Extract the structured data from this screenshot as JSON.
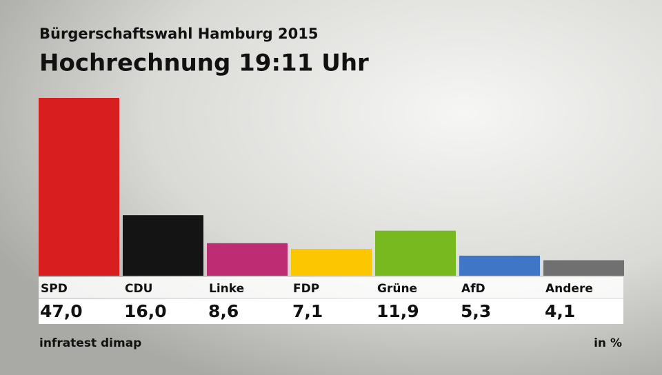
{
  "chart_data": {
    "type": "bar",
    "subtitle": "Bürgerschaftswahl Hamburg 2015",
    "title": "Hochrechnung 19:11 Uhr",
    "categories": [
      "SPD",
      "CDU",
      "Linke",
      "FDP",
      "Grüne",
      "AfD",
      "Andere"
    ],
    "values": [
      47.0,
      16.0,
      8.6,
      7.1,
      11.9,
      5.3,
      4.1
    ],
    "value_labels": [
      "47,0",
      "16,0",
      "8,6",
      "7,1",
      "11,9",
      "5,3",
      "4,1"
    ],
    "colors": [
      "#d81e1e",
      "#141414",
      "#be2c74",
      "#fdc700",
      "#79b920",
      "#3f76c6",
      "#707070"
    ],
    "source": "infratest dimap",
    "unit_label": "in %"
  }
}
